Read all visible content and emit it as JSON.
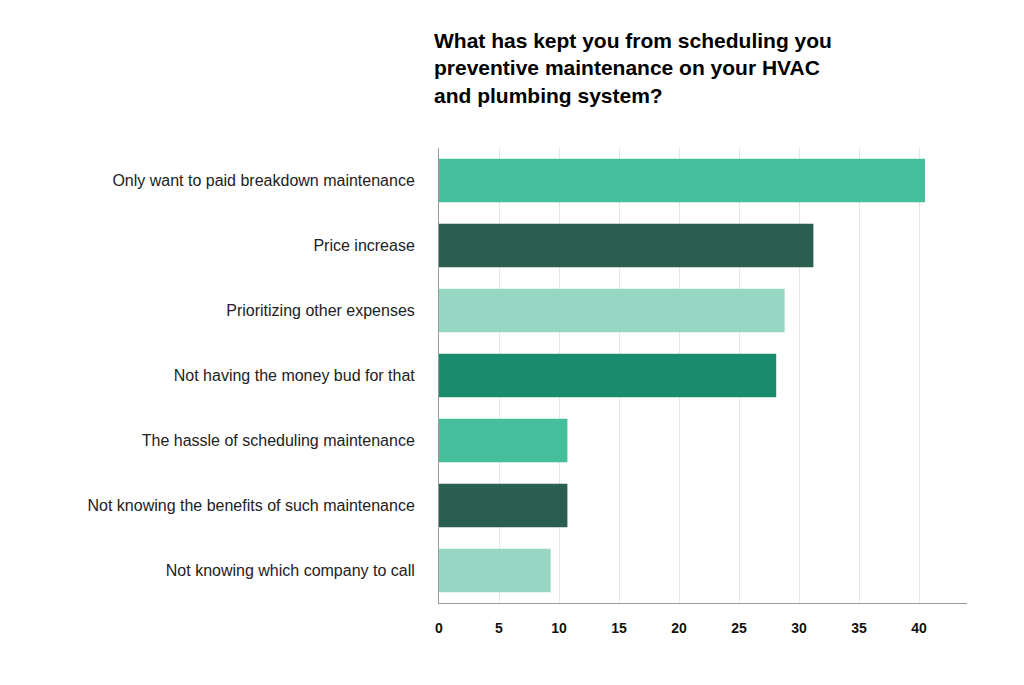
{
  "chart_data": {
    "type": "bar",
    "title": "What has kept you from scheduling you preventive maintenance on your HVAC and plumbing system?",
    "orientation": "horizontal",
    "categories": [
      "Only want to paid breakdown maintenance",
      "Price increase",
      "Prioritizing other expenses",
      "Not having the money bud for that",
      "The hassle of scheduling maintenance",
      "Not knowing the benefits of such maintenance",
      "Not knowing which company to call"
    ],
    "values": [
      40.5,
      31.2,
      28.8,
      28.1,
      10.7,
      10.7,
      9.3
    ],
    "colors": [
      "#45bf9b",
      "#2a5e50",
      "#96d6c3",
      "#1b8b6e",
      "#45bf9b",
      "#2a5e50",
      "#96d6c3"
    ],
    "xlim": [
      0,
      44
    ],
    "xticks": [
      0,
      5,
      10,
      15,
      20,
      25,
      30,
      35,
      40
    ],
    "grid": true
  }
}
